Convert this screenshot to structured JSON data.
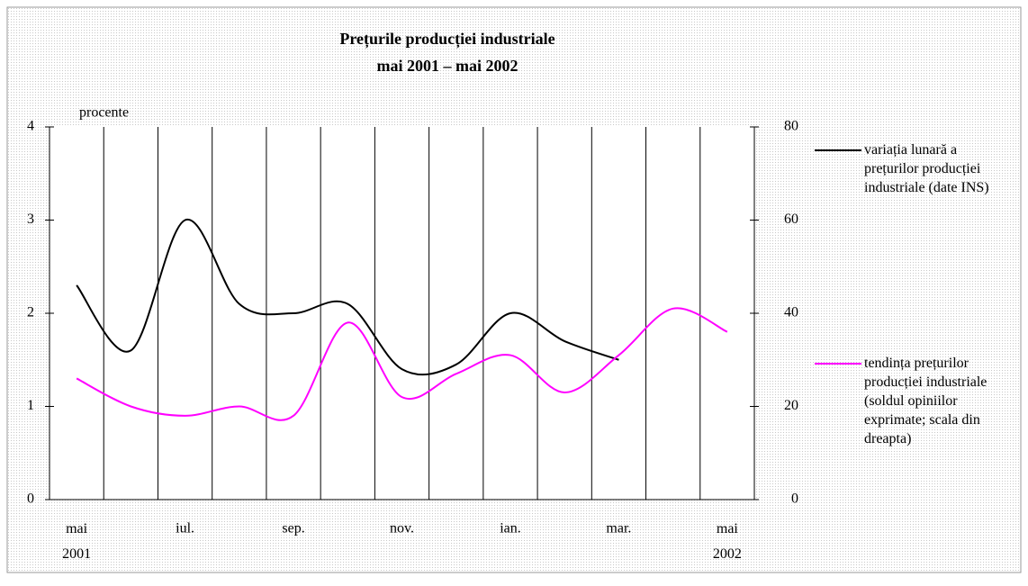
{
  "chart_data": {
    "type": "line",
    "title": "Prețurile producției industriale",
    "subtitle": "mai 2001 – mai 2002",
    "y_label": "procente",
    "categories": [
      "mai 2001",
      null,
      "iul.",
      null,
      "sep.",
      null,
      "nov.",
      null,
      "ian.",
      null,
      "mar.",
      null,
      "mai 2002"
    ],
    "ylim": [
      0,
      4
    ],
    "yticks": [
      0,
      1,
      2,
      3,
      4
    ],
    "y2lim": [
      0,
      80
    ],
    "y2ticks": [
      0,
      20,
      40,
      60,
      80
    ],
    "series": [
      {
        "name": "variația lunară a prețurilor producției industriale (date INS)",
        "color": "#000000",
        "values": [
          2.3,
          1.6,
          3.0,
          2.1,
          2.0,
          2.1,
          1.4,
          1.45,
          2.0,
          1.7,
          1.5,
          null,
          null
        ]
      },
      {
        "name": "tendința prețurilor producției industriale (soldul opiniilor exprimate; scala din dreapta)",
        "color": "#ff00ff",
        "axis": "y2",
        "values": [
          26,
          20,
          18,
          20,
          18,
          38,
          22,
          27,
          31,
          23,
          31,
          41,
          36
        ]
      }
    ]
  }
}
